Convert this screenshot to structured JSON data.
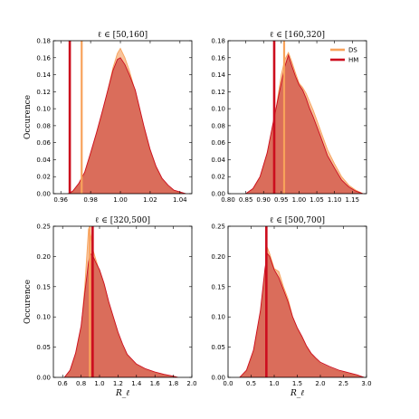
{
  "colors": {
    "DS": "#f8a25b",
    "HM": "#cc0d1e",
    "DS_fill": "#f7b98a",
    "HM_fill": "#d2584b"
  },
  "legend": {
    "placement": "top-right",
    "entries": [
      "DS",
      "HM"
    ]
  },
  "chart_data": [
    {
      "type": "area",
      "title": "ℓ ∈ [50,160]",
      "ylabel": "Occurence",
      "xlabel": "",
      "xlim": [
        0.955,
        1.048
      ],
      "ylim": [
        0,
        0.18
      ],
      "xticks": [
        0.96,
        0.98,
        1.0,
        1.02,
        1.04
      ],
      "xtick_labels": [
        "0.96",
        "0.98",
        "1.00",
        "1.02",
        "1.04"
      ],
      "yticks": [
        0,
        0.02,
        0.04,
        0.06,
        0.08,
        0.1,
        0.12,
        0.14,
        0.16,
        0.18
      ],
      "ytick_labels": [
        "0.00",
        "0.02",
        "0.04",
        "0.06",
        "0.08",
        "0.10",
        "0.12",
        "0.14",
        "0.16",
        "0.18"
      ],
      "series": [
        {
          "name": "DS",
          "x": [
            0.965,
            0.968,
            0.972,
            0.976,
            0.98,
            0.984,
            0.988,
            0.992,
            0.995,
            0.998,
            1.0,
            1.003,
            1.006,
            1.01,
            1.013,
            1.016,
            1.02,
            1.024,
            1.028,
            1.032,
            1.036,
            1.04,
            1.044
          ],
          "y": [
            0.0,
            0.002,
            0.01,
            0.022,
            0.045,
            0.07,
            0.095,
            0.125,
            0.148,
            0.165,
            0.171,
            0.16,
            0.145,
            0.12,
            0.1,
            0.075,
            0.05,
            0.03,
            0.016,
            0.008,
            0.003,
            0.001,
            0.0
          ]
        },
        {
          "name": "HM",
          "x": [
            0.965,
            0.968,
            0.972,
            0.976,
            0.98,
            0.984,
            0.988,
            0.992,
            0.995,
            0.998,
            1.0,
            1.003,
            1.006,
            1.01,
            1.013,
            1.016,
            1.02,
            1.024,
            1.028,
            1.032,
            1.036,
            1.04,
            1.044
          ],
          "y": [
            0.0,
            0.003,
            0.012,
            0.025,
            0.048,
            0.072,
            0.098,
            0.125,
            0.145,
            0.158,
            0.16,
            0.152,
            0.14,
            0.122,
            0.1,
            0.078,
            0.052,
            0.032,
            0.018,
            0.01,
            0.004,
            0.002,
            0.0
          ]
        }
      ],
      "vlines": [
        {
          "name": "DS",
          "x": 0.974
        },
        {
          "name": "HM",
          "x": 0.966
        }
      ]
    },
    {
      "type": "area",
      "title": "ℓ ∈ [160,320]",
      "ylabel": "",
      "xlabel": "",
      "xlim": [
        0.8,
        1.19
      ],
      "ylim": [
        0,
        0.18
      ],
      "xticks": [
        0.8,
        0.85,
        0.9,
        0.95,
        1.0,
        1.05,
        1.1,
        1.15
      ],
      "xtick_labels": [
        "0.80",
        "0.85",
        "0.90",
        "0.95",
        "1.00",
        "1.05",
        "1.10",
        "1.15"
      ],
      "yticks": [
        0,
        0.02,
        0.04,
        0.06,
        0.08,
        0.1,
        0.12,
        0.14,
        0.16,
        0.18
      ],
      "ytick_labels": [
        "0.00",
        "0.02",
        "0.04",
        "0.06",
        "0.08",
        "0.10",
        "0.12",
        "0.14",
        "0.16",
        "0.18"
      ],
      "series": [
        {
          "name": "DS",
          "x": [
            0.85,
            0.87,
            0.89,
            0.91,
            0.93,
            0.95,
            0.96,
            0.97,
            0.98,
            0.99,
            1.0,
            1.01,
            1.02,
            1.03,
            1.04,
            1.06,
            1.08,
            1.1,
            1.12,
            1.14,
            1.16,
            1.18
          ],
          "y": [
            0.0,
            0.005,
            0.018,
            0.045,
            0.085,
            0.14,
            0.158,
            0.166,
            0.155,
            0.142,
            0.13,
            0.125,
            0.118,
            0.108,
            0.098,
            0.075,
            0.052,
            0.035,
            0.02,
            0.01,
            0.004,
            0.0
          ]
        },
        {
          "name": "HM",
          "x": [
            0.85,
            0.87,
            0.89,
            0.91,
            0.93,
            0.95,
            0.96,
            0.97,
            0.98,
            0.99,
            1.0,
            1.01,
            1.02,
            1.03,
            1.04,
            1.06,
            1.08,
            1.1,
            1.12,
            1.14,
            1.16,
            1.18
          ],
          "y": [
            0.0,
            0.006,
            0.02,
            0.048,
            0.09,
            0.13,
            0.15,
            0.163,
            0.15,
            0.138,
            0.128,
            0.122,
            0.112,
            0.1,
            0.09,
            0.068,
            0.045,
            0.03,
            0.016,
            0.008,
            0.003,
            0.0
          ]
        }
      ],
      "vlines": [
        {
          "name": "DS",
          "x": 0.958
        },
        {
          "name": "HM",
          "x": 0.93
        }
      ]
    },
    {
      "type": "area",
      "title": "ℓ ∈ [320,500]",
      "ylabel": "Occurence",
      "xlabel": "R_ℓ",
      "xlim": [
        0.5,
        2.0
      ],
      "ylim": [
        0,
        0.25
      ],
      "xticks": [
        0.6,
        0.8,
        1.0,
        1.2,
        1.4,
        1.6,
        1.8,
        2.0
      ],
      "xtick_labels": [
        "0.6",
        "0.8",
        "1.0",
        "1.2",
        "1.4",
        "1.6",
        "1.8",
        "2.0"
      ],
      "yticks": [
        0,
        0.05,
        0.1,
        0.15,
        0.2,
        0.25
      ],
      "ytick_labels": [
        "0.00",
        "0.05",
        "0.10",
        "0.15",
        "0.20",
        "0.25"
      ],
      "series": [
        {
          "name": "DS",
          "x": [
            0.62,
            0.68,
            0.74,
            0.8,
            0.84,
            0.88,
            0.9,
            0.93,
            0.96,
            1.0,
            1.05,
            1.1,
            1.15,
            1.2,
            1.25,
            1.3,
            1.4,
            1.5,
            1.6,
            1.7,
            1.8,
            1.85
          ],
          "y": [
            0.0,
            0.01,
            0.035,
            0.08,
            0.15,
            0.245,
            0.24,
            0.21,
            0.195,
            0.175,
            0.15,
            0.12,
            0.095,
            0.07,
            0.05,
            0.035,
            0.02,
            0.012,
            0.008,
            0.004,
            0.002,
            0.0
          ]
        },
        {
          "name": "HM",
          "x": [
            0.62,
            0.68,
            0.74,
            0.8,
            0.84,
            0.88,
            0.9,
            0.93,
            0.96,
            1.0,
            1.05,
            1.1,
            1.15,
            1.2,
            1.25,
            1.3,
            1.4,
            1.5,
            1.6,
            1.7,
            1.8,
            1.85
          ],
          "y": [
            0.0,
            0.012,
            0.04,
            0.085,
            0.14,
            0.19,
            0.205,
            0.2,
            0.19,
            0.178,
            0.155,
            0.125,
            0.1,
            0.075,
            0.055,
            0.038,
            0.022,
            0.014,
            0.009,
            0.005,
            0.002,
            0.0
          ]
        }
      ],
      "vlines": [
        {
          "name": "DS",
          "x": 0.895
        },
        {
          "name": "HM",
          "x": 0.925
        }
      ]
    },
    {
      "type": "area",
      "title": "ℓ ∈ [500,700]",
      "ylabel": "",
      "xlabel": "R_ℓ",
      "xlim": [
        0.0,
        3.0
      ],
      "ylim": [
        0,
        0.25
      ],
      "xticks": [
        0.0,
        0.5,
        1.0,
        1.5,
        2.0,
        2.5,
        3.0
      ],
      "xtick_labels": [
        "0.0",
        "0.5",
        "1.0",
        "1.5",
        "2.0",
        "2.5",
        "3.0"
      ],
      "yticks": [
        0,
        0.05,
        0.1,
        0.15,
        0.2,
        0.25
      ],
      "ytick_labels": [
        "0.00",
        "0.05",
        "0.10",
        "0.15",
        "0.20",
        "0.25"
      ],
      "series": [
        {
          "name": "DS",
          "x": [
            0.25,
            0.4,
            0.55,
            0.7,
            0.8,
            0.85,
            0.9,
            1.0,
            1.1,
            1.2,
            1.3,
            1.4,
            1.5,
            1.6,
            1.7,
            1.8,
            1.9,
            2.0,
            2.2,
            2.4,
            2.6,
            2.8,
            2.95
          ],
          "y": [
            0.0,
            0.01,
            0.04,
            0.1,
            0.17,
            0.215,
            0.205,
            0.18,
            0.175,
            0.15,
            0.13,
            0.1,
            0.08,
            0.065,
            0.05,
            0.038,
            0.03,
            0.022,
            0.015,
            0.01,
            0.006,
            0.003,
            0.0
          ]
        },
        {
          "name": "HM",
          "x": [
            0.25,
            0.4,
            0.55,
            0.7,
            0.8,
            0.85,
            0.9,
            1.0,
            1.1,
            1.2,
            1.3,
            1.4,
            1.5,
            1.6,
            1.7,
            1.8,
            1.9,
            2.0,
            2.2,
            2.4,
            2.6,
            2.8,
            2.95
          ],
          "y": [
            0.0,
            0.012,
            0.045,
            0.11,
            0.18,
            0.205,
            0.2,
            0.178,
            0.165,
            0.145,
            0.125,
            0.1,
            0.082,
            0.068,
            0.052,
            0.04,
            0.032,
            0.025,
            0.018,
            0.012,
            0.008,
            0.004,
            0.0
          ]
        }
      ],
      "vlines": [
        {
          "name": "DS",
          "x": 0.83
        },
        {
          "name": "HM",
          "x": 0.83
        }
      ]
    }
  ]
}
